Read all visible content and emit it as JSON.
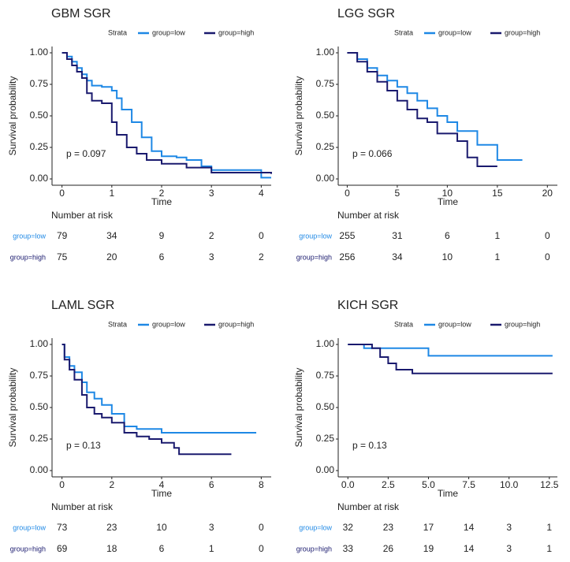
{
  "chart_data": [
    {
      "type": "step",
      "title": "GBM SGR",
      "legend_title": "Strata",
      "xlabel": "Time",
      "ylabel": "Survival probability",
      "annotation": "p = 0.097",
      "xlim": [
        -0.2,
        4.2
      ],
      "xticks": [
        0,
        1,
        2,
        3,
        4
      ],
      "ylim": [
        -0.05,
        1.05
      ],
      "yticks": [
        {
          "value": 0,
          "label": "0.00"
        },
        0.25,
        {
          "value": 0.5,
          "label": "0.50"
        },
        0.75,
        {
          "value": 1,
          "label": "1.00"
        }
      ],
      "series": [
        {
          "name": "group=low",
          "color": "#1e88e5",
          "x": [
            0,
            0.1,
            0.2,
            0.3,
            0.4,
            0.5,
            0.6,
            0.8,
            1.0,
            1.1,
            1.2,
            1.4,
            1.6,
            1.8,
            2.0,
            2.3,
            2.5,
            2.8,
            3.0,
            4.0,
            4.2
          ],
          "values": [
            1,
            0.97,
            0.93,
            0.88,
            0.83,
            0.78,
            0.74,
            0.73,
            0.7,
            0.64,
            0.55,
            0.45,
            0.33,
            0.22,
            0.18,
            0.17,
            0.15,
            0.1,
            0.07,
            0.01,
            0.01
          ]
        },
        {
          "name": "group=high",
          "color": "#1a1a6e",
          "x": [
            0,
            0.1,
            0.2,
            0.3,
            0.4,
            0.5,
            0.6,
            0.8,
            1.0,
            1.1,
            1.3,
            1.5,
            1.7,
            2.0,
            2.5,
            3.0,
            4.2
          ],
          "values": [
            1,
            0.95,
            0.9,
            0.85,
            0.8,
            0.68,
            0.62,
            0.6,
            0.45,
            0.35,
            0.25,
            0.2,
            0.15,
            0.12,
            0.09,
            0.05,
            0.04
          ]
        }
      ],
      "risk_table": {
        "title": "Number at risk",
        "values": [
          [
            79,
            34,
            9,
            2,
            0
          ],
          [
            75,
            20,
            6,
            3,
            2
          ]
        ]
      }
    },
    {
      "type": "step",
      "title": "LGG SGR",
      "legend_title": "Strata",
      "xlabel": "Time",
      "ylabel": "Survival probability",
      "annotation": "p = 0.066",
      "xlim": [
        -0.9,
        21
      ],
      "xticks": [
        0,
        5,
        10,
        15,
        20
      ],
      "ylim": [
        -0.05,
        1.05
      ],
      "yticks": [
        {
          "value": 0,
          "label": "0.00"
        },
        0.25,
        {
          "value": 0.5,
          "label": "0.50"
        },
        0.75,
        {
          "value": 1,
          "label": "1.00"
        }
      ],
      "series": [
        {
          "name": "group=low",
          "color": "#1e88e5",
          "x": [
            0,
            1,
            2,
            3,
            4,
            5,
            6,
            7,
            8,
            9,
            10,
            11,
            12,
            13,
            15,
            17.5
          ],
          "values": [
            1,
            0.95,
            0.88,
            0.82,
            0.78,
            0.73,
            0.68,
            0.62,
            0.56,
            0.5,
            0.45,
            0.38,
            0.38,
            0.27,
            0.15,
            0.15
          ]
        },
        {
          "name": "group=high",
          "color": "#1a1a6e",
          "x": [
            0,
            1,
            2,
            3,
            4,
            5,
            6,
            7,
            8,
            9,
            10,
            11,
            12,
            13,
            15
          ],
          "values": [
            1,
            0.93,
            0.85,
            0.77,
            0.7,
            0.62,
            0.55,
            0.48,
            0.45,
            0.36,
            0.36,
            0.3,
            0.17,
            0.1,
            0.1
          ]
        }
      ],
      "risk_table": {
        "title": "Number at risk",
        "values": [
          [
            255,
            31,
            6,
            1,
            0
          ],
          [
            256,
            34,
            10,
            1,
            0
          ]
        ]
      }
    },
    {
      "type": "step",
      "title": "LAML SGR",
      "legend_title": "Strata",
      "xlabel": "Time",
      "ylabel": "Survival probability",
      "annotation": "p = 0.13",
      "xlim": [
        -0.4,
        8.4
      ],
      "xticks": [
        0,
        2,
        4,
        6,
        8
      ],
      "ylim": [
        -0.05,
        1.05
      ],
      "yticks": [
        {
          "value": 0,
          "label": "0.00"
        },
        0.25,
        {
          "value": 0.5,
          "label": "0.50"
        },
        0.75,
        {
          "value": 1,
          "label": "1.00"
        }
      ],
      "series": [
        {
          "name": "group=low",
          "color": "#1e88e5",
          "x": [
            0,
            0.1,
            0.3,
            0.5,
            0.8,
            1.0,
            1.3,
            1.6,
            2.0,
            2.5,
            3.0,
            4.0,
            5.0,
            7.8
          ],
          "values": [
            1,
            0.9,
            0.83,
            0.78,
            0.7,
            0.62,
            0.57,
            0.52,
            0.45,
            0.35,
            0.33,
            0.3,
            0.3,
            0.3
          ]
        },
        {
          "name": "group=high",
          "color": "#1a1a6e",
          "x": [
            0,
            0.1,
            0.3,
            0.5,
            0.8,
            1.0,
            1.3,
            1.6,
            2.0,
            2.5,
            3.0,
            3.5,
            4.0,
            4.5,
            4.7,
            6.8
          ],
          "values": [
            1,
            0.88,
            0.8,
            0.72,
            0.6,
            0.5,
            0.45,
            0.42,
            0.38,
            0.3,
            0.27,
            0.25,
            0.22,
            0.18,
            0.13,
            0.13
          ]
        }
      ],
      "risk_table": {
        "title": "Number at risk",
        "values": [
          [
            73,
            23,
            10,
            3,
            0
          ],
          [
            69,
            18,
            6,
            1,
            0
          ]
        ]
      }
    },
    {
      "type": "step",
      "title": "KICH SGR",
      "legend_title": "Strata",
      "xlabel": "Time",
      "ylabel": "Survival probability",
      "annotation": "p = 0.13",
      "xlim": [
        -0.6,
        13
      ],
      "xticks": [
        {
          "value": 0,
          "label": "0.0"
        },
        2.5,
        {
          "value": 5,
          "label": "5.0"
        },
        7.5,
        {
          "value": 10,
          "label": "10.0"
        },
        12.5
      ],
      "ylim": [
        -0.05,
        1.05
      ],
      "yticks": [
        {
          "value": 0,
          "label": "0.00"
        },
        0.25,
        {
          "value": 0.5,
          "label": "0.50"
        },
        0.75,
        {
          "value": 1,
          "label": "1.00"
        }
      ],
      "series": [
        {
          "name": "group=low",
          "color": "#1e88e5",
          "x": [
            0,
            1,
            5,
            12.7
          ],
          "values": [
            1,
            0.97,
            0.91,
            0.91
          ]
        },
        {
          "name": "group=high",
          "color": "#1a1a6e",
          "x": [
            0,
            1.5,
            2.0,
            2.5,
            3.0,
            4.0,
            12.7
          ],
          "values": [
            1,
            0.97,
            0.9,
            0.85,
            0.8,
            0.77,
            0.77
          ]
        }
      ],
      "risk_table": {
        "title": "Number at risk",
        "values": [
          [
            32,
            23,
            17,
            14,
            3,
            1
          ],
          [
            33,
            26,
            19,
            14,
            3,
            1
          ]
        ]
      }
    }
  ]
}
